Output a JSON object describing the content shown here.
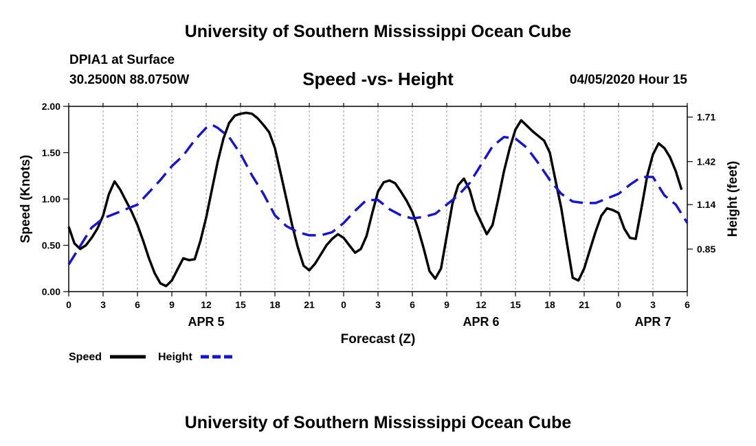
{
  "header": {
    "title": "University of Southern Mississippi Ocean Cube",
    "station": "DPIA1 at Surface",
    "coordinates": "30.2500N 88.0750W",
    "chart_title": "Speed -vs- Height",
    "timestamp": "04/05/2020 Hour 15"
  },
  "footer": {
    "title": "University of Southern Mississippi Ocean Cube"
  },
  "chart_data": {
    "type": "line",
    "title": "Speed -vs- Height",
    "xlabel": "Forecast (Z)",
    "ylabel_left": "Speed (Knots)",
    "ylabel_right": "Height (feet)",
    "x_range_hours": [
      0,
      54
    ],
    "x_ticks": [
      {
        "hour": 0,
        "label": "0"
      },
      {
        "hour": 3,
        "label": "3"
      },
      {
        "hour": 6,
        "label": "6"
      },
      {
        "hour": 9,
        "label": "9"
      },
      {
        "hour": 12,
        "label": "12"
      },
      {
        "hour": 15,
        "label": "15"
      },
      {
        "hour": 18,
        "label": "18"
      },
      {
        "hour": 21,
        "label": "21"
      },
      {
        "hour": 24,
        "label": "0"
      },
      {
        "hour": 27,
        "label": "3"
      },
      {
        "hour": 30,
        "label": "6"
      },
      {
        "hour": 33,
        "label": "9"
      },
      {
        "hour": 36,
        "label": "12"
      },
      {
        "hour": 39,
        "label": "15"
      },
      {
        "hour": 42,
        "label": "18"
      },
      {
        "hour": 45,
        "label": "21"
      },
      {
        "hour": 48,
        "label": "0"
      },
      {
        "hour": 51,
        "label": "3"
      },
      {
        "hour": 54,
        "label": "6"
      }
    ],
    "day_labels": [
      {
        "hour": 12,
        "label": "APR 5"
      },
      {
        "hour": 36,
        "label": "APR 6"
      },
      {
        "hour": 51,
        "label": "APR 7"
      }
    ],
    "y_left": {
      "min": 0,
      "max": 2,
      "ticks": [
        0,
        0.5,
        1,
        1.5,
        2
      ],
      "tick_labels": [
        "0.00",
        "0.50",
        "1.00",
        "1.50",
        "2.00"
      ]
    },
    "y_right": {
      "min": 0.573,
      "max": 1.78,
      "ticks": [
        0.85,
        1.14,
        1.42,
        1.71
      ],
      "tick_labels": [
        "0.85",
        "1.14",
        "1.42",
        "1.71"
      ]
    },
    "series": [
      {
        "name": "Speed",
        "axis": "left",
        "color": "#000000",
        "style": "solid",
        "points": [
          [
            0,
            0.7
          ],
          [
            0.5,
            0.52
          ],
          [
            1,
            0.46
          ],
          [
            1.5,
            0.5
          ],
          [
            2,
            0.58
          ],
          [
            2.5,
            0.68
          ],
          [
            3,
            0.82
          ],
          [
            3.5,
            1.05
          ],
          [
            4,
            1.19
          ],
          [
            4.5,
            1.1
          ],
          [
            5,
            0.98
          ],
          [
            5.5,
            0.86
          ],
          [
            6,
            0.72
          ],
          [
            6.5,
            0.55
          ],
          [
            7,
            0.36
          ],
          [
            7.5,
            0.2
          ],
          [
            8,
            0.09
          ],
          [
            8.5,
            0.06
          ],
          [
            9,
            0.12
          ],
          [
            9.5,
            0.24
          ],
          [
            10,
            0.36
          ],
          [
            10.5,
            0.34
          ],
          [
            11,
            0.35
          ],
          [
            11.5,
            0.55
          ],
          [
            12,
            0.8
          ],
          [
            12.5,
            1.1
          ],
          [
            13,
            1.4
          ],
          [
            13.5,
            1.65
          ],
          [
            14,
            1.82
          ],
          [
            14.5,
            1.9
          ],
          [
            15,
            1.92
          ],
          [
            15.5,
            1.93
          ],
          [
            16,
            1.92
          ],
          [
            16.5,
            1.87
          ],
          [
            17,
            1.8
          ],
          [
            17.5,
            1.72
          ],
          [
            18,
            1.55
          ],
          [
            18.5,
            1.28
          ],
          [
            19,
            1.0
          ],
          [
            19.5,
            0.72
          ],
          [
            20,
            0.48
          ],
          [
            20.5,
            0.28
          ],
          [
            21,
            0.23
          ],
          [
            21.5,
            0.3
          ],
          [
            22,
            0.4
          ],
          [
            22.5,
            0.5
          ],
          [
            23,
            0.57
          ],
          [
            23.5,
            0.62
          ],
          [
            24,
            0.58
          ],
          [
            24.5,
            0.5
          ],
          [
            25,
            0.42
          ],
          [
            25.5,
            0.46
          ],
          [
            26,
            0.6
          ],
          [
            26.5,
            0.85
          ],
          [
            27,
            1.08
          ],
          [
            27.5,
            1.18
          ],
          [
            28,
            1.2
          ],
          [
            28.5,
            1.17
          ],
          [
            29,
            1.08
          ],
          [
            29.5,
            0.98
          ],
          [
            30,
            0.86
          ],
          [
            30.5,
            0.68
          ],
          [
            31,
            0.46
          ],
          [
            31.5,
            0.22
          ],
          [
            32,
            0.14
          ],
          [
            32.5,
            0.25
          ],
          [
            33,
            0.6
          ],
          [
            33.5,
            0.95
          ],
          [
            34,
            1.15
          ],
          [
            34.5,
            1.22
          ],
          [
            35,
            1.1
          ],
          [
            35.5,
            0.88
          ],
          [
            36,
            0.75
          ],
          [
            36.5,
            0.62
          ],
          [
            37,
            0.72
          ],
          [
            37.5,
            1.0
          ],
          [
            38,
            1.3
          ],
          [
            38.5,
            1.55
          ],
          [
            39,
            1.75
          ],
          [
            39.5,
            1.85
          ],
          [
            40,
            1.79
          ],
          [
            40.5,
            1.73
          ],
          [
            41,
            1.68
          ],
          [
            41.5,
            1.63
          ],
          [
            42,
            1.5
          ],
          [
            42.5,
            1.2
          ],
          [
            43,
            0.9
          ],
          [
            43.5,
            0.52
          ],
          [
            44,
            0.15
          ],
          [
            44.5,
            0.12
          ],
          [
            45,
            0.25
          ],
          [
            45.5,
            0.45
          ],
          [
            46,
            0.65
          ],
          [
            46.5,
            0.82
          ],
          [
            47,
            0.9
          ],
          [
            47.5,
            0.88
          ],
          [
            48,
            0.85
          ],
          [
            48.5,
            0.68
          ],
          [
            49,
            0.58
          ],
          [
            49.5,
            0.57
          ],
          [
            50,
            0.9
          ],
          [
            50.5,
            1.25
          ],
          [
            51,
            1.48
          ],
          [
            51.5,
            1.6
          ],
          [
            52,
            1.55
          ],
          [
            52.5,
            1.45
          ],
          [
            53,
            1.3
          ],
          [
            53.5,
            1.1
          ]
        ]
      },
      {
        "name": "Height",
        "axis": "right",
        "color": "#1414d2",
        "style": "dashed",
        "points": [
          [
            0,
            0.75
          ],
          [
            1,
            0.87
          ],
          [
            2,
            0.99
          ],
          [
            3,
            1.05
          ],
          [
            4,
            1.08
          ],
          [
            5,
            1.11
          ],
          [
            6,
            1.14
          ],
          [
            7,
            1.22
          ],
          [
            8,
            1.3
          ],
          [
            9,
            1.39
          ],
          [
            10,
            1.46
          ],
          [
            11,
            1.56
          ],
          [
            12,
            1.64
          ],
          [
            12.5,
            1.66
          ],
          [
            13,
            1.64
          ],
          [
            14,
            1.58
          ],
          [
            15,
            1.47
          ],
          [
            16,
            1.33
          ],
          [
            17,
            1.21
          ],
          [
            18,
            1.07
          ],
          [
            19,
            1.0
          ],
          [
            20,
            0.96
          ],
          [
            21,
            0.94
          ],
          [
            22,
            0.94
          ],
          [
            23,
            0.96
          ],
          [
            24,
            1.02
          ],
          [
            25,
            1.1
          ],
          [
            26,
            1.17
          ],
          [
            27,
            1.17
          ],
          [
            28,
            1.11
          ],
          [
            29,
            1.07
          ],
          [
            30,
            1.05
          ],
          [
            31,
            1.06
          ],
          [
            32,
            1.08
          ],
          [
            33,
            1.14
          ],
          [
            34,
            1.2
          ],
          [
            35,
            1.28
          ],
          [
            36,
            1.4
          ],
          [
            37,
            1.52
          ],
          [
            38,
            1.58
          ],
          [
            39,
            1.57
          ],
          [
            40,
            1.51
          ],
          [
            41,
            1.41
          ],
          [
            42,
            1.3
          ],
          [
            43,
            1.21
          ],
          [
            44,
            1.16
          ],
          [
            45,
            1.15
          ],
          [
            46,
            1.15
          ],
          [
            47,
            1.18
          ],
          [
            48,
            1.21
          ],
          [
            49,
            1.27
          ],
          [
            50,
            1.32
          ],
          [
            51,
            1.32
          ],
          [
            52,
            1.2
          ],
          [
            53,
            1.14
          ],
          [
            54,
            1.02
          ]
        ]
      }
    ],
    "legend": [
      {
        "label": "Speed",
        "color": "#000000",
        "style": "solid"
      },
      {
        "label": "Height",
        "color": "#1414d2",
        "style": "dashed"
      }
    ],
    "legend_position": "bottom-left"
  }
}
